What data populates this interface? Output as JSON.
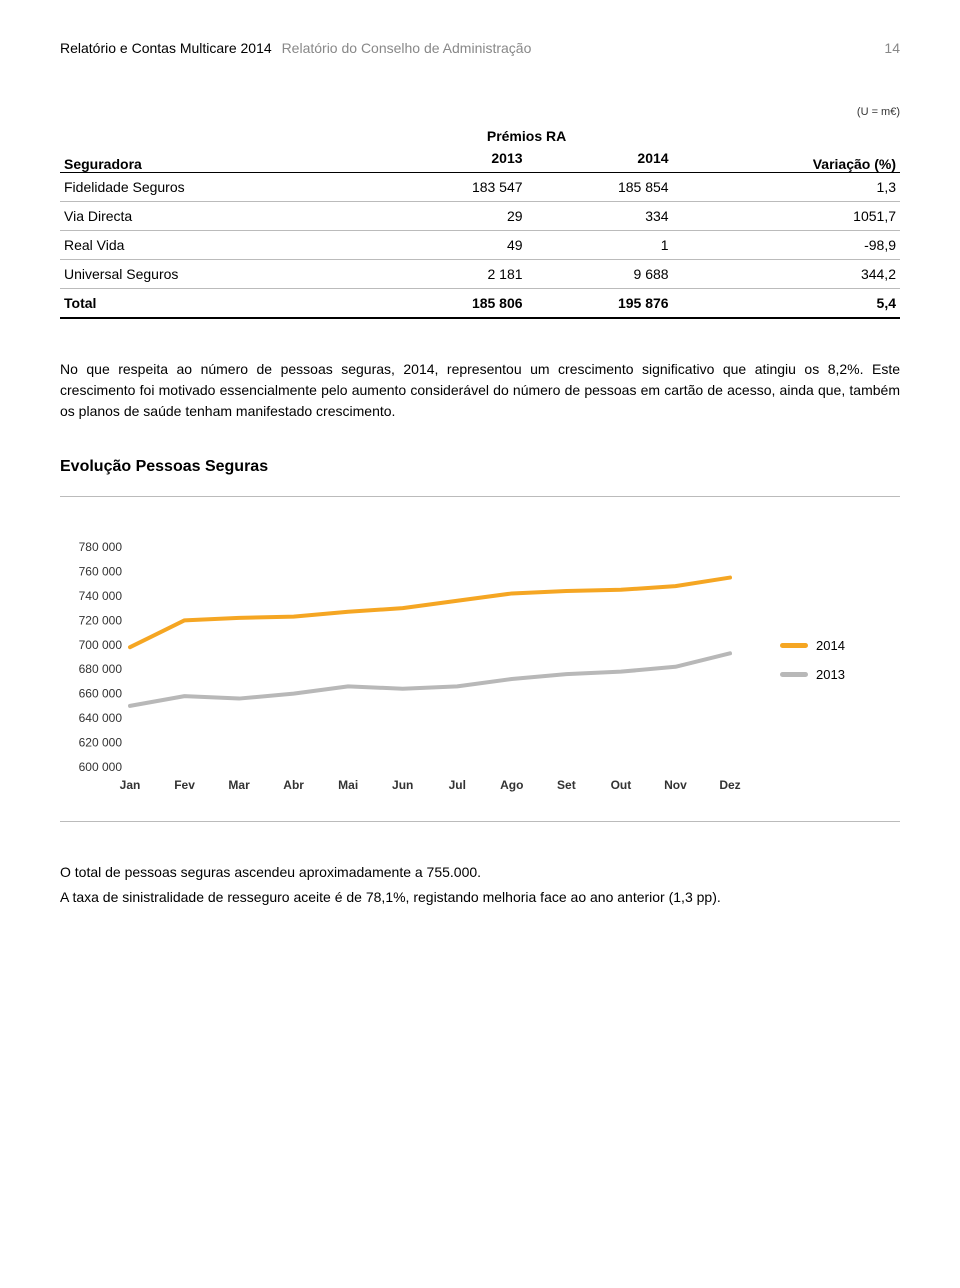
{
  "header": {
    "doc_title": "Relatório e Contas Multicare 2014",
    "section_title": "Relatório do Conselho de Administração",
    "page_number": "14"
  },
  "unit_note": "(U = m€)",
  "table": {
    "col_seguradora": "Seguradora",
    "col_group": "Prémios RA",
    "col_2013": "2013",
    "col_2014": "2014",
    "col_var": "Variação (%)",
    "rows": [
      {
        "name": "Fidelidade Seguros",
        "v2013": "183 547",
        "v2014": "185 854",
        "var": "1,3"
      },
      {
        "name": "Via Directa",
        "v2013": "29",
        "v2014": "334",
        "var": "1051,7"
      },
      {
        "name": "Real Vida",
        "v2013": "49",
        "v2014": "1",
        "var": "-98,9"
      },
      {
        "name": "Universal Seguros",
        "v2013": "2 181",
        "v2014": "9 688",
        "var": "344,2"
      }
    ],
    "total": {
      "name": "Total",
      "v2013": "185 806",
      "v2014": "195 876",
      "var": "5,4"
    }
  },
  "paragraph": "No que respeita ao número de pessoas seguras, 2014, representou um crescimento significativo que atingiu os 8,2%. Este crescimento foi motivado essencialmente pelo aumento considerável do número de pessoas em cartão de acesso, ainda que, também os planos de saúde tenham manifestado crescimento.",
  "chart": {
    "title": "Evolução Pessoas Seguras",
    "type": "line",
    "x_labels": [
      "Jan",
      "Fev",
      "Mar",
      "Abr",
      "Mai",
      "Jun",
      "Jul",
      "Ago",
      "Set",
      "Out",
      "Nov",
      "Dez"
    ],
    "ylim": [
      600000,
      780000
    ],
    "ytick_step": 20000,
    "yticks": [
      "780 000",
      "760 000",
      "740 000",
      "720 000",
      "700 000",
      "680 000",
      "660 000",
      "640 000",
      "620 000",
      "600 000"
    ],
    "series": [
      {
        "label": "2014",
        "color": "#f5a623",
        "values": [
          698000,
          720000,
          722000,
          723000,
          727000,
          730000,
          736000,
          742000,
          744000,
          745000,
          748000,
          755000
        ]
      },
      {
        "label": "2013",
        "color": "#b8b8b8",
        "values": [
          650000,
          658000,
          656000,
          660000,
          666000,
          664000,
          666000,
          672000,
          676000,
          678000,
          682000,
          693000
        ]
      }
    ],
    "line_width": 4,
    "background_color": "#ffffff"
  },
  "footer_p1": "O total de pessoas seguras ascendeu aproximadamente a 755.000.",
  "footer_p2": "A taxa de sinistralidade de resseguro aceite é de 78,1%, registando melhoria face ao ano anterior (1,3 pp)."
}
